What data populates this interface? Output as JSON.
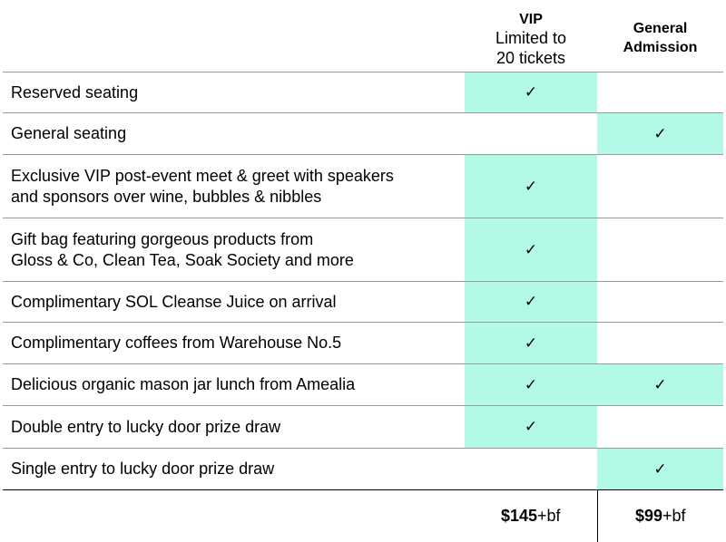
{
  "header": {
    "vip": {
      "title": "VIP",
      "subtitle_line1": "Limited to",
      "subtitle_line2": "20 tickets"
    },
    "general": {
      "title_line1": "General",
      "title_line2": "Admission"
    }
  },
  "check_glyph": "✓",
  "rows": [
    {
      "line1": "Reserved seating",
      "line2": "",
      "vip": true,
      "general": false
    },
    {
      "line1": "General seating",
      "line2": "",
      "vip": false,
      "general": true
    },
    {
      "line1": "Exclusive VIP post-event meet & greet with speakers",
      "line2": "and sponsors over wine, bubbles & nibbles",
      "vip": true,
      "general": false
    },
    {
      "line1": "Gift bag featuring gorgeous products from",
      "line2": "Gloss & Co, Clean Tea, Soak Society and more",
      "vip": true,
      "general": false
    },
    {
      "line1": "Complimentary SOL Cleanse Juice on arrival",
      "line2": "",
      "vip": true,
      "general": false
    },
    {
      "line1": "Complimentary coffees from Warehouse No.5",
      "line2": "",
      "vip": true,
      "general": false
    },
    {
      "line1": "Delicious organic mason jar lunch from Amealia",
      "line2": "",
      "vip": true,
      "general": true
    },
    {
      "line1": "Double entry to lucky door prize draw",
      "line2": "",
      "vip": true,
      "general": false
    },
    {
      "line1": "Single entry to lucky door prize draw",
      "line2": "",
      "vip": false,
      "general": true
    }
  ],
  "prices": {
    "vip": {
      "amount": "$145",
      "suffix": "+bf"
    },
    "general": {
      "amount": "$99",
      "suffix": "+bf"
    }
  },
  "colors": {
    "highlight": "#b3f9e8",
    "rule": "#9a9a9a"
  }
}
